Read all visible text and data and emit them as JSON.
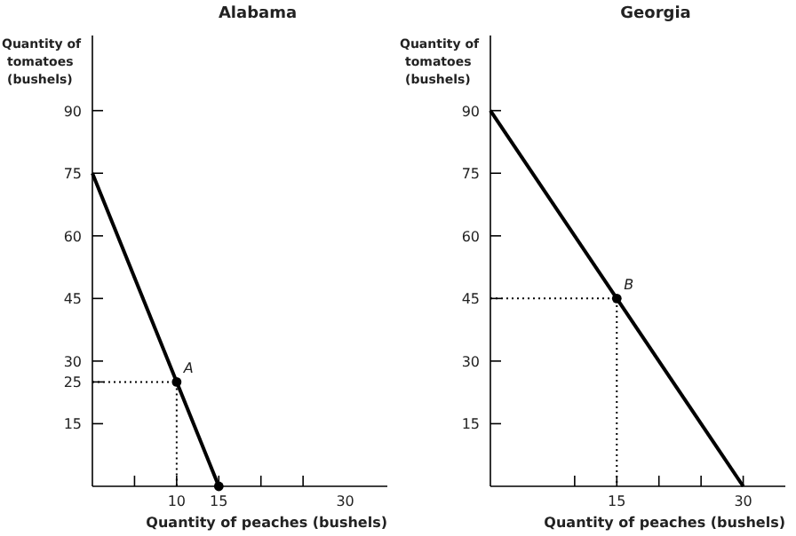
{
  "chart_data": [
    {
      "type": "line",
      "title": "Alabama",
      "xlabel": "Quantity of peaches (bushels)",
      "ylabel": "Quantity of tomatoes (bushels)",
      "xlim": [
        0,
        35
      ],
      "ylim": [
        0,
        108
      ],
      "xticks": [
        {
          "value": 5,
          "label": null
        },
        10,
        15,
        {
          "value": 20,
          "label": null
        },
        {
          "value": 25,
          "label": null
        },
        {
          "value": 30,
          "label": "30"
        }
      ],
      "yticks": [
        15,
        25,
        30,
        45,
        60,
        75,
        90
      ],
      "series": [
        {
          "color": "#000000",
          "x": [
            0,
            15
          ],
          "values": [
            75,
            0
          ]
        },
        {
          "color": "#000000",
          "line_style": "dotted",
          "x": [
            0,
            10,
            10
          ],
          "values": [
            25,
            25,
            0
          ]
        },
        {
          "type": "scatter",
          "color": "#000000",
          "marker": "circle",
          "x": [
            10,
            15
          ],
          "values": [
            25,
            0
          ]
        }
      ],
      "annotations": [
        {
          "text": "A",
          "x": 10,
          "y": 25
        }
      ]
    },
    {
      "type": "line",
      "title": "Georgia",
      "xlabel": "Quantity of peaches (bushels)",
      "ylabel": "Quantity of tomatoes (bushels)",
      "xlim": [
        0,
        35
      ],
      "ylim": [
        0,
        108
      ],
      "xticks": [
        {
          "value": 10,
          "label": null
        },
        15,
        {
          "value": 20,
          "label": null
        },
        {
          "value": 25,
          "label": null
        },
        30
      ],
      "yticks": [
        15,
        30,
        45,
        60,
        75,
        90
      ],
      "series": [
        {
          "color": "#000000",
          "x": [
            0,
            30
          ],
          "values": [
            90,
            0
          ]
        },
        {
          "color": "#000000",
          "line_style": "dotted",
          "x": [
            0,
            15,
            15
          ],
          "values": [
            45,
            45,
            0
          ]
        },
        {
          "type": "scatter",
          "color": "#000000",
          "marker": "circle",
          "x": [
            15
          ],
          "values": [
            45
          ]
        }
      ],
      "annotations": [
        {
          "text": "B",
          "x": 15,
          "y": 45
        }
      ]
    }
  ]
}
